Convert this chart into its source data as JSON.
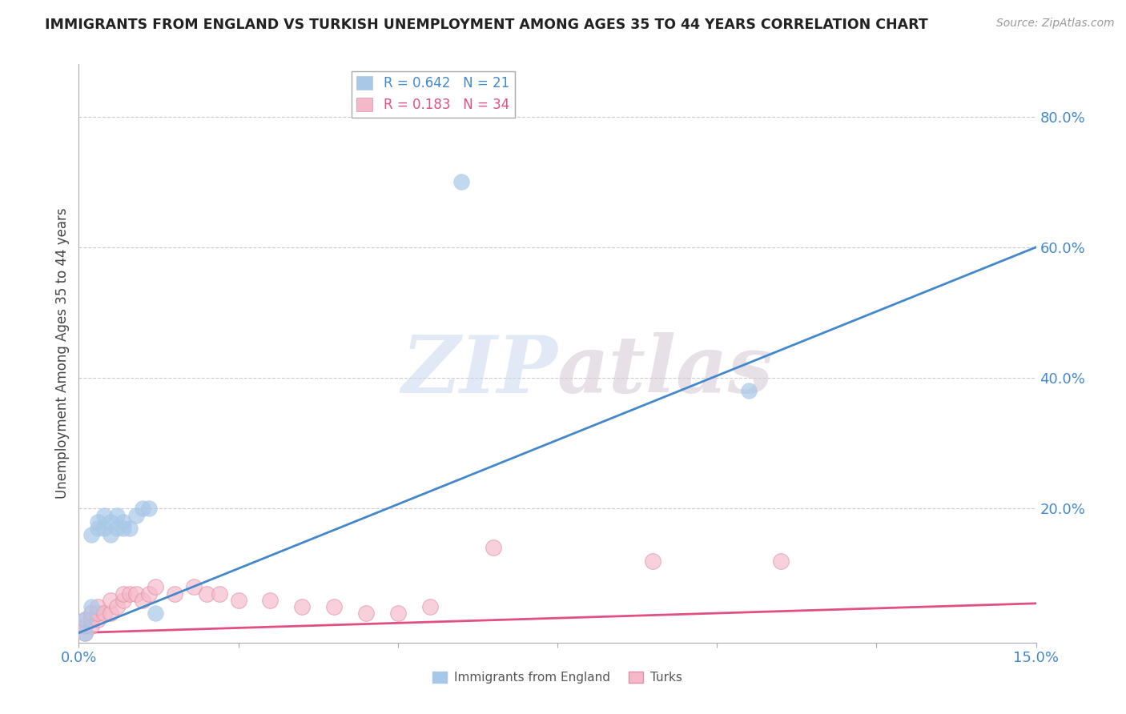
{
  "title": "IMMIGRANTS FROM ENGLAND VS TURKISH UNEMPLOYMENT AMONG AGES 35 TO 44 YEARS CORRELATION CHART",
  "source": "Source: ZipAtlas.com",
  "ylabel": "Unemployment Among Ages 35 to 44 years",
  "legend_label1": "Immigrants from England",
  "legend_label2": "Turks",
  "R1": 0.642,
  "N1": 21,
  "R2": 0.183,
  "N2": 34,
  "xlim": [
    0.0,
    0.15
  ],
  "ylim": [
    -0.005,
    0.88
  ],
  "xticks": [
    0.0,
    0.025,
    0.05,
    0.075,
    0.1,
    0.125,
    0.15
  ],
  "xtick_labels": [
    "0.0%",
    "",
    "",
    "",
    "",
    "",
    "15.0%"
  ],
  "yticks_right": [
    0.2,
    0.4,
    0.6,
    0.8
  ],
  "ytick_labels_right": [
    "20.0%",
    "40.0%",
    "60.0%",
    "80.0%"
  ],
  "color_blue": "#a8c8e8",
  "color_pink": "#f5b8c8",
  "line_color_blue": "#4488cc",
  "line_color_pink": "#e05080",
  "watermark_zip": "ZIP",
  "watermark_atlas": "atlas",
  "blue_scatter_x": [
    0.001,
    0.001,
    0.002,
    0.002,
    0.003,
    0.003,
    0.004,
    0.004,
    0.005,
    0.005,
    0.006,
    0.006,
    0.007,
    0.007,
    0.008,
    0.009,
    0.01,
    0.011,
    0.012,
    0.06,
    0.105
  ],
  "blue_scatter_y": [
    0.03,
    0.01,
    0.16,
    0.05,
    0.17,
    0.18,
    0.19,
    0.17,
    0.18,
    0.16,
    0.17,
    0.19,
    0.17,
    0.18,
    0.17,
    0.19,
    0.2,
    0.2,
    0.04,
    0.7,
    0.38
  ],
  "pink_scatter_x": [
    0.001,
    0.001,
    0.001,
    0.002,
    0.002,
    0.002,
    0.003,
    0.003,
    0.003,
    0.004,
    0.005,
    0.005,
    0.006,
    0.007,
    0.007,
    0.008,
    0.009,
    0.01,
    0.011,
    0.012,
    0.015,
    0.018,
    0.02,
    0.022,
    0.025,
    0.03,
    0.035,
    0.04,
    0.045,
    0.05,
    0.055,
    0.065,
    0.09,
    0.11
  ],
  "pink_scatter_y": [
    0.01,
    0.02,
    0.03,
    0.02,
    0.03,
    0.04,
    0.03,
    0.04,
    0.05,
    0.04,
    0.04,
    0.06,
    0.05,
    0.06,
    0.07,
    0.07,
    0.07,
    0.06,
    0.07,
    0.08,
    0.07,
    0.08,
    0.07,
    0.07,
    0.06,
    0.06,
    0.05,
    0.05,
    0.04,
    0.04,
    0.05,
    0.14,
    0.12,
    0.12
  ],
  "blue_line_x": [
    0.0,
    0.15
  ],
  "blue_line_y": [
    0.01,
    0.6
  ],
  "pink_line_x": [
    0.0,
    0.15
  ],
  "pink_line_y": [
    0.01,
    0.055
  ]
}
